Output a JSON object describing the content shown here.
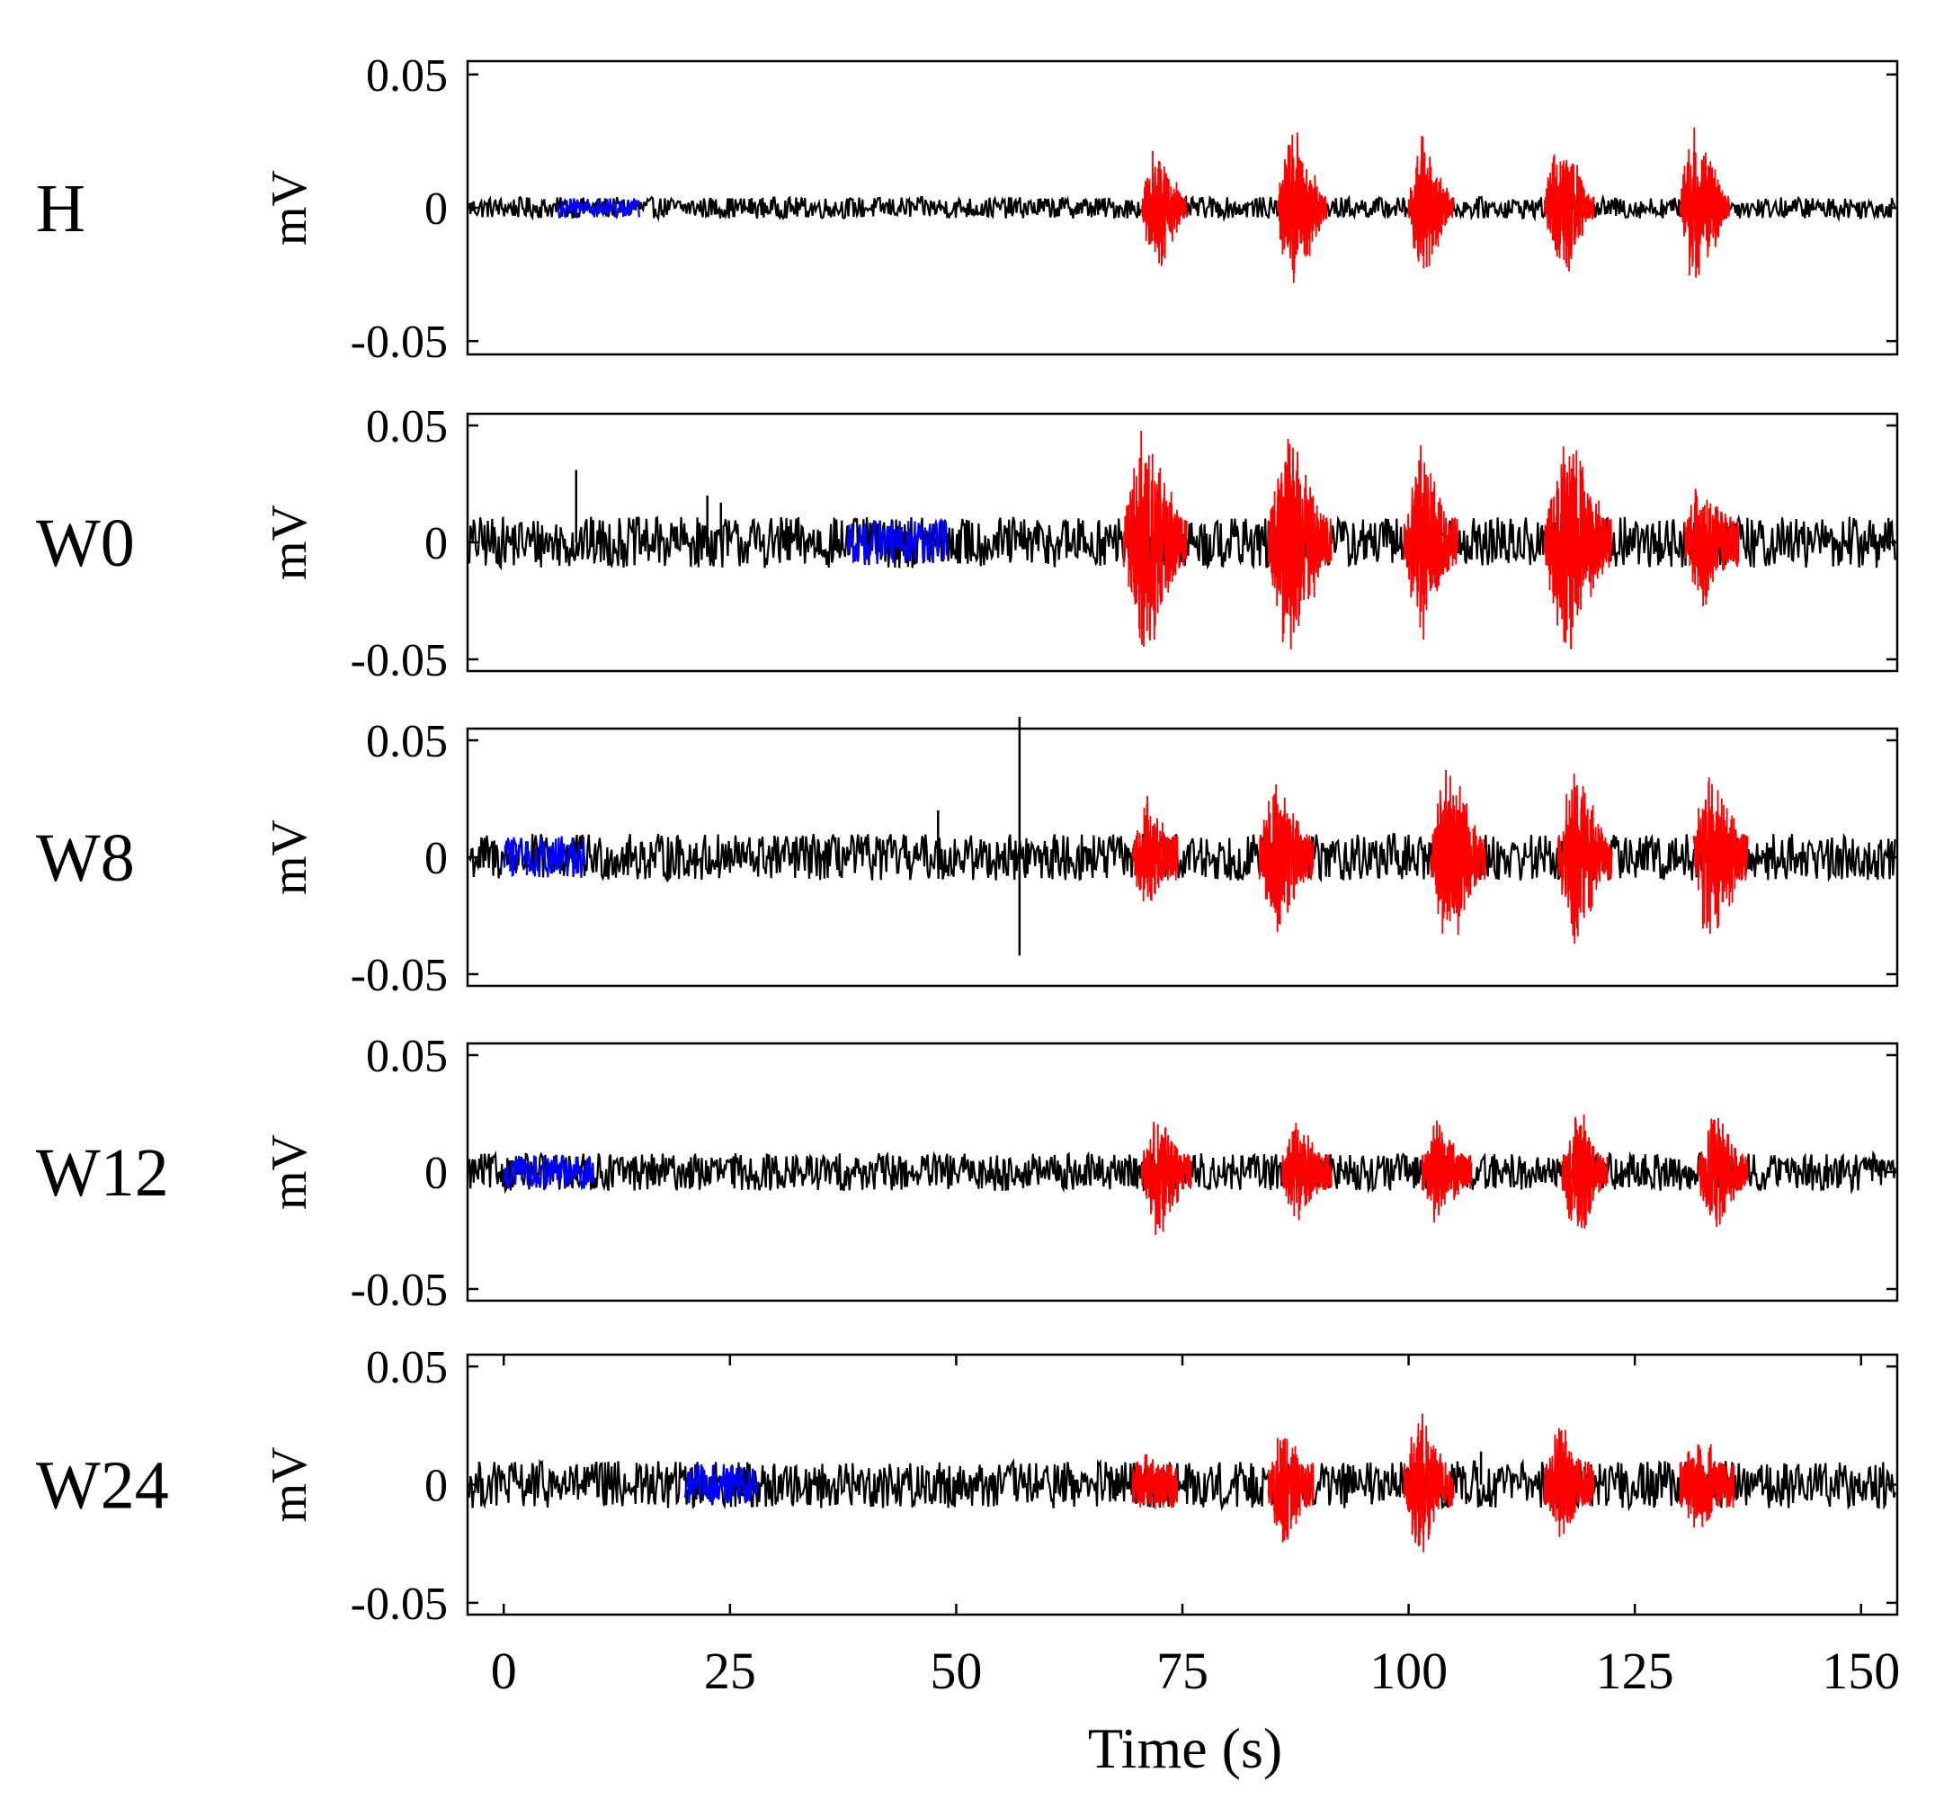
{
  "chart_data": {
    "type": "line",
    "xlabel": "Time (s)",
    "x_ticks": [
      "0",
      "25",
      "50",
      "75",
      "100",
      "125",
      "150"
    ],
    "x_tick_values": [
      0,
      25,
      50,
      75,
      100,
      125,
      150
    ],
    "xlim": [
      -4,
      154
    ],
    "ylim": [
      -0.055,
      0.055
    ],
    "y_ticks": [
      "0.05",
      "0",
      "-0.05"
    ],
    "y_tick_values": [
      0.05,
      0,
      -0.05
    ],
    "ylabel": "mV",
    "grid": false,
    "colors": {
      "baseline": "#000000",
      "rest": "#0000ff",
      "burst": "#ff0000"
    },
    "panels": [
      {
        "label": "H",
        "noise_amplitude": 0.004,
        "rest_segment": [
          6,
          15
        ],
        "bursts": [
          {
            "start": 70.5,
            "end": 75.5,
            "peak": 0.029
          },
          {
            "start": 85.5,
            "end": 91.0,
            "peak": 0.037
          },
          {
            "start": 100.0,
            "end": 105.0,
            "peak": 0.035
          },
          {
            "start": 115.0,
            "end": 120.5,
            "peak": 0.034
          },
          {
            "start": 130.0,
            "end": 135.5,
            "peak": 0.036
          }
        ],
        "spikes": []
      },
      {
        "label": "W0",
        "noise_amplitude": 0.011,
        "rest_segment": [
          38,
          49
        ],
        "bursts": [
          {
            "start": 68.5,
            "end": 75.5,
            "peak": 0.058
          },
          {
            "start": 84.5,
            "end": 91.5,
            "peak": 0.06
          },
          {
            "start": 99.5,
            "end": 105.5,
            "peak": 0.047
          },
          {
            "start": 115.0,
            "end": 122.5,
            "peak": 0.056
          },
          {
            "start": 130.5,
            "end": 136.5,
            "peak": 0.034
          }
        ],
        "spikes": [
          {
            "t": 8,
            "value": 0.031
          },
          {
            "t": 22.5,
            "value": 0.02
          },
          {
            "t": 24,
            "value": 0.017
          }
        ]
      },
      {
        "label": "W8",
        "noise_amplitude": 0.01,
        "rest_segment": [
          0,
          9
        ],
        "bursts": [
          {
            "start": 69.5,
            "end": 74.5,
            "peak": 0.03
          },
          {
            "start": 83.5,
            "end": 89.5,
            "peak": 0.038
          },
          {
            "start": 102.5,
            "end": 108.5,
            "peak": 0.048
          },
          {
            "start": 116.5,
            "end": 122.5,
            "peak": 0.044
          },
          {
            "start": 131.5,
            "end": 137.5,
            "peak": 0.047
          }
        ],
        "spikes": [
          {
            "t": 48,
            "value": 0.02
          },
          {
            "t": 57,
            "value": 0.06
          },
          {
            "t": 57,
            "value": -0.042
          }
        ]
      },
      {
        "label": "W12",
        "noise_amplitude": 0.008,
        "rest_segment": [
          0,
          10
        ],
        "bursts": [
          {
            "start": 70.5,
            "end": 76.0,
            "peak": 0.032
          },
          {
            "start": 86.0,
            "end": 91.5,
            "peak": 0.025
          },
          {
            "start": 101.5,
            "end": 107.0,
            "peak": 0.026
          },
          {
            "start": 117.0,
            "end": 122.0,
            "peak": 0.034
          },
          {
            "start": 132.0,
            "end": 137.5,
            "peak": 0.031
          }
        ],
        "spikes": []
      },
      {
        "label": "W24",
        "noise_amplitude": 0.01,
        "rest_segment": [
          20,
          28
        ],
        "bursts": [
          {
            "start": 69.5,
            "end": 74.5,
            "peak": 0.016
          },
          {
            "start": 84.5,
            "end": 89.5,
            "peak": 0.03
          },
          {
            "start": 99.5,
            "end": 105.0,
            "peak": 0.036
          },
          {
            "start": 115.0,
            "end": 120.5,
            "peak": 0.031
          },
          {
            "start": 130.0,
            "end": 136.0,
            "peak": 0.027
          }
        ],
        "spikes": [
          {
            "t": 108,
            "value": 0.014
          }
        ]
      }
    ]
  }
}
